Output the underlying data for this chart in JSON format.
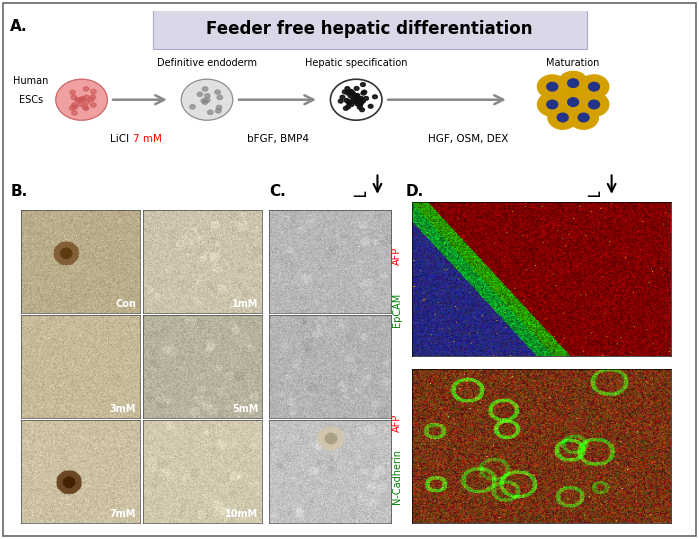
{
  "title": "Feeder free hepatic differentiation",
  "panel_A_label": "A.",
  "panel_B_label": "B.",
  "panel_C_label": "C.",
  "panel_D_label": "D.",
  "B_labels": [
    "Con",
    "1mM",
    "3mM",
    "5mM",
    "7mM",
    "10mM"
  ],
  "D_top_label_red": "AFP",
  "D_top_label_green": "EpCAM",
  "D_bot_label_red": "AFP",
  "D_bot_label_green": "N-Cadherin",
  "bg_color": "#ffffff",
  "title_bg": "#d8d8e8",
  "border_color": "#555555"
}
